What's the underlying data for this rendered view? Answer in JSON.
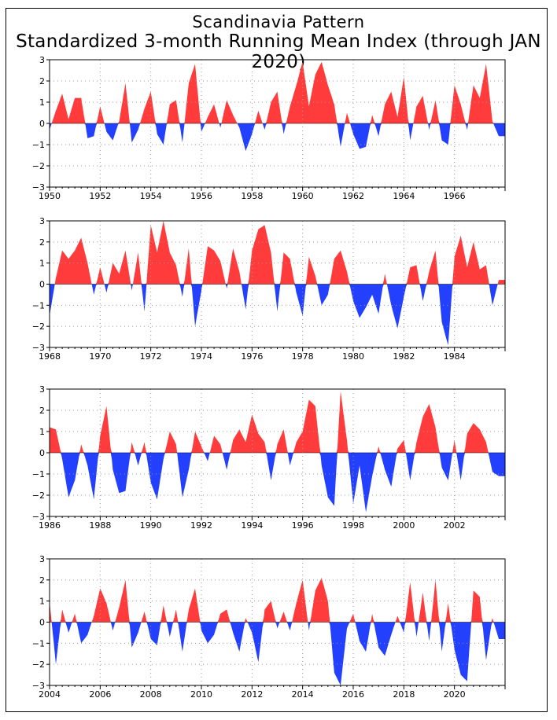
{
  "title": "Scandinavia Pattern",
  "subtitle": "Standardized 3-month Running Mean Index (through JAN 2020)",
  "colors": {
    "positive": "#ff3b3b",
    "negative": "#2340ff",
    "grid": "#9a9a9a",
    "axis": "#000000"
  },
  "chart_data": [
    {
      "type": "area",
      "x_ticks": [
        "1950",
        "1952",
        "1954",
        "1956",
        "1958",
        "1960",
        "1962",
        "1964",
        "1966"
      ],
      "xlim": [
        1950,
        1968
      ],
      "ylim": [
        -3,
        3
      ],
      "y_ticks": [
        "3",
        "2",
        "1",
        "0",
        "−1",
        "−2",
        "−3"
      ],
      "grid": true,
      "x": [
        1950.0,
        1950.25,
        1950.5,
        1950.75,
        1951.0,
        1951.25,
        1951.5,
        1951.75,
        1952.0,
        1952.25,
        1952.5,
        1952.75,
        1953.0,
        1953.25,
        1953.5,
        1953.75,
        1954.0,
        1954.25,
        1954.5,
        1954.75,
        1955.0,
        1955.25,
        1955.5,
        1955.75,
        1956.0,
        1956.25,
        1956.5,
        1956.75,
        1957.0,
        1957.25,
        1957.5,
        1957.75,
        1958.0,
        1958.25,
        1958.5,
        1958.75,
        1959.0,
        1959.25,
        1959.5,
        1959.75,
        1960.0,
        1960.25,
        1960.5,
        1960.75,
        1961.0,
        1961.25,
        1961.5,
        1961.75,
        1962.0,
        1962.25,
        1962.5,
        1962.75,
        1963.0,
        1963.25,
        1963.5,
        1963.75,
        1964.0,
        1964.25,
        1964.5,
        1964.75,
        1965.0,
        1965.25,
        1965.5,
        1965.75,
        1966.0,
        1966.25,
        1966.5,
        1966.75,
        1967.0,
        1967.25,
        1967.5,
        1967.75
      ],
      "values": [
        -0.3,
        0.6,
        1.4,
        0.2,
        1.2,
        1.2,
        -0.7,
        -0.6,
        0.8,
        -0.4,
        -0.8,
        0.1,
        1.9,
        -0.9,
        -0.3,
        0.7,
        1.5,
        -0.5,
        -1.0,
        0.9,
        1.1,
        -0.9,
        1.9,
        2.8,
        -0.4,
        0.3,
        0.9,
        -0.2,
        1.1,
        0.4,
        -0.2,
        -1.3,
        -0.5,
        0.6,
        -0.3,
        1.0,
        1.5,
        -0.5,
        0.8,
        1.8,
        2.9,
        0.8,
        2.3,
        2.9,
        1.8,
        0.9,
        -1.1,
        0.5,
        -0.5,
        -1.2,
        -1.1,
        0.4,
        -0.6,
        0.9,
        1.5,
        0.3,
        2.2,
        -0.8,
        0.8,
        1.3,
        -0.3,
        1.1,
        -0.8,
        -1.0,
        1.8,
        0.9,
        -0.3,
        1.8,
        1.2,
        2.8,
        0.1,
        -0.6
      ]
    },
    {
      "type": "area",
      "x_ticks": [
        "1968",
        "1970",
        "1972",
        "1974",
        "1976",
        "1978",
        "1980",
        "1982",
        "1984"
      ],
      "xlim": [
        1968,
        1986
      ],
      "ylim": [
        -3,
        3
      ],
      "y_ticks": [
        "3",
        "2",
        "1",
        "0",
        "−1",
        "−2",
        "−3"
      ],
      "grid": true,
      "x": [
        1968.0,
        1968.25,
        1968.5,
        1968.75,
        1969.0,
        1969.25,
        1969.5,
        1969.75,
        1970.0,
        1970.25,
        1970.5,
        1970.75,
        1971.0,
        1971.25,
        1971.5,
        1971.75,
        1972.0,
        1972.25,
        1972.5,
        1972.75,
        1973.0,
        1973.25,
        1973.5,
        1973.75,
        1974.0,
        1974.25,
        1974.5,
        1974.75,
        1975.0,
        1975.25,
        1975.5,
        1975.75,
        1976.0,
        1976.25,
        1976.5,
        1976.75,
        1977.0,
        1977.25,
        1977.5,
        1977.75,
        1978.0,
        1978.25,
        1978.5,
        1978.75,
        1979.0,
        1979.25,
        1979.5,
        1979.75,
        1980.0,
        1980.25,
        1980.5,
        1980.75,
        1981.0,
        1981.25,
        1981.5,
        1981.75,
        1982.0,
        1982.25,
        1982.5,
        1982.75,
        1983.0,
        1983.25,
        1983.5,
        1983.75,
        1984.0,
        1984.25,
        1984.5,
        1984.75,
        1985.0,
        1985.25,
        1985.5,
        1985.75
      ],
      "values": [
        -1.5,
        0.3,
        1.6,
        1.2,
        1.6,
        2.2,
        1.0,
        -0.5,
        0.8,
        -0.4,
        1.0,
        0.5,
        1.6,
        -0.3,
        1.5,
        -1.3,
        2.8,
        1.5,
        3.0,
        1.5,
        0.9,
        -0.6,
        1.7,
        -2.0,
        -0.3,
        1.8,
        1.6,
        1.1,
        -0.2,
        1.7,
        0.6,
        -1.2,
        1.6,
        2.6,
        2.8,
        1.5,
        -1.3,
        1.5,
        1.2,
        -0.4,
        -1.5,
        1.3,
        0.4,
        -1.0,
        -0.5,
        1.2,
        1.6,
        0.6,
        -0.8,
        -1.6,
        -1.1,
        -0.5,
        -1.4,
        0.5,
        -1.0,
        -2.1,
        -0.6,
        0.8,
        0.9,
        -0.8,
        0.6,
        1.6,
        -1.8,
        -2.9,
        1.3,
        2.3,
        0.8,
        2.0,
        0.7,
        0.9,
        -1.0,
        0.2
      ]
    },
    {
      "type": "area",
      "x_ticks": [
        "1986",
        "1988",
        "1990",
        "1992",
        "1994",
        "1996",
        "1998",
        "2000",
        "2002"
      ],
      "xlim": [
        1986,
        2004
      ],
      "ylim": [
        -3,
        3
      ],
      "y_ticks": [
        "3",
        "2",
        "1",
        "0",
        "−1",
        "−2",
        "−3"
      ],
      "grid": true,
      "x": [
        1986.0,
        1986.25,
        1986.5,
        1986.75,
        1987.0,
        1987.25,
        1987.5,
        1987.75,
        1988.0,
        1988.25,
        1988.5,
        1988.75,
        1989.0,
        1989.25,
        1989.5,
        1989.75,
        1990.0,
        1990.25,
        1990.5,
        1990.75,
        1991.0,
        1991.25,
        1991.5,
        1991.75,
        1992.0,
        1992.25,
        1992.5,
        1992.75,
        1993.0,
        1993.25,
        1993.5,
        1993.75,
        1994.0,
        1994.25,
        1994.5,
        1994.75,
        1995.0,
        1995.25,
        1995.5,
        1995.75,
        1996.0,
        1996.25,
        1996.5,
        1996.75,
        1997.0,
        1997.25,
        1997.5,
        1997.75,
        1998.0,
        1998.25,
        1998.5,
        1998.75,
        1999.0,
        1999.25,
        1999.5,
        1999.75,
        2000.0,
        2000.25,
        2000.5,
        2000.75,
        2001.0,
        2001.25,
        2001.5,
        2001.75,
        2002.0,
        2002.25,
        2002.5,
        2002.75,
        2003.0,
        2003.25,
        2003.5,
        2003.75
      ],
      "values": [
        1.2,
        1.1,
        -0.3,
        -2.1,
        -1.3,
        0.4,
        -0.6,
        -2.2,
        0.8,
        2.2,
        -0.8,
        -1.9,
        -1.8,
        0.5,
        -0.6,
        0.5,
        -1.4,
        -2.2,
        -0.3,
        1.0,
        0.4,
        -2.1,
        -0.8,
        1.0,
        0.3,
        -0.4,
        0.8,
        0.4,
        -0.8,
        0.6,
        1.1,
        0.5,
        1.8,
        0.9,
        0.5,
        -1.3,
        0.4,
        1.1,
        -0.6,
        0.5,
        1.0,
        2.5,
        2.2,
        -0.6,
        -2.1,
        -2.5,
        2.9,
        0.6,
        -2.4,
        -0.6,
        -2.8,
        -1.1,
        0.3,
        -0.8,
        -1.6,
        0.2,
        0.6,
        -1.3,
        0.5,
        1.7,
        2.3,
        1.2,
        -0.7,
        -1.3,
        0.6,
        -1.3,
        0.9,
        1.4,
        1.1,
        0.5,
        -0.9,
        -1.1
      ]
    },
    {
      "type": "area",
      "x_ticks": [
        "2004",
        "2006",
        "2008",
        "2010",
        "2012",
        "2014",
        "2016",
        "2018",
        "2020"
      ],
      "xlim": [
        2004,
        2022
      ],
      "ylim": [
        -3,
        3
      ],
      "y_ticks": [
        "3",
        "2",
        "1",
        "0",
        "−1",
        "−2",
        "−3"
      ],
      "grid": true,
      "x": [
        2004.0,
        2004.25,
        2004.5,
        2004.75,
        2005.0,
        2005.25,
        2005.5,
        2005.75,
        2006.0,
        2006.25,
        2006.5,
        2006.75,
        2007.0,
        2007.25,
        2007.5,
        2007.75,
        2008.0,
        2008.25,
        2008.5,
        2008.75,
        2009.0,
        2009.25,
        2009.5,
        2009.75,
        2010.0,
        2010.25,
        2010.5,
        2010.75,
        2011.0,
        2011.25,
        2011.5,
        2011.75,
        2012.0,
        2012.25,
        2012.5,
        2012.75,
        2013.0,
        2013.25,
        2013.5,
        2013.75,
        2014.0,
        2014.25,
        2014.5,
        2014.75,
        2015.0,
        2015.25,
        2015.5,
        2015.75,
        2016.0,
        2016.25,
        2016.5,
        2016.75,
        2017.0,
        2017.25,
        2017.5,
        2017.75,
        2018.0,
        2018.25,
        2018.5,
        2018.75,
        2019.0,
        2019.25,
        2019.5,
        2019.75,
        2020.0,
        2020.25,
        2020.5,
        2020.75,
        2021.0,
        2021.25,
        2021.5,
        2021.75
      ],
      "values": [
        1.0,
        -2.0,
        0.6,
        -0.5,
        0.4,
        -1.0,
        -0.6,
        0.3,
        1.6,
        0.9,
        -0.4,
        0.7,
        2.0,
        -1.2,
        -0.5,
        0.5,
        -0.8,
        -1.1,
        0.8,
        -0.7,
        0.6,
        -1.4,
        0.6,
        1.6,
        -0.4,
        -1.0,
        -0.6,
        0.4,
        0.6,
        -0.5,
        -1.4,
        0.2,
        -0.5,
        -1.9,
        0.6,
        1.0,
        -0.3,
        0.5,
        -0.4,
        0.9,
        2.0,
        -0.4,
        1.5,
        2.1,
        1.0,
        -2.4,
        -3.0,
        -0.3,
        0.4,
        -0.9,
        -1.4,
        0.4,
        -1.2,
        -1.6,
        -0.6,
        0.3,
        -0.5,
        1.9,
        -0.7,
        1.4,
        -0.9,
        2.0,
        -1.4,
        0.9,
        -1.3,
        -2.5,
        -2.8,
        1.5,
        1.2,
        -1.8,
        0.2,
        -0.8
      ]
    }
  ]
}
